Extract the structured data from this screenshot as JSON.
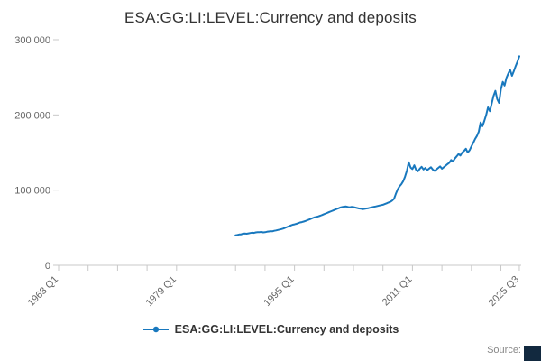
{
  "chart_data": {
    "type": "line",
    "title": "ESA:GG:LI:LEVEL:Currency and deposits",
    "legend": "ESA:GG:LI:LEVEL:Currency and deposits",
    "xlabel": "",
    "ylabel": "",
    "grid": false,
    "legend_position": "bottom-center",
    "xlim": [
      1963,
      2025.75
    ],
    "ylim": [
      0,
      300000
    ],
    "yticks": [
      {
        "v": 0,
        "label": "0"
      },
      {
        "v": 100000,
        "label": "100 000"
      },
      {
        "v": 200000,
        "label": "200 000"
      },
      {
        "v": 300000,
        "label": "300 000"
      }
    ],
    "xticks_labeled": [
      {
        "t": 1963.0,
        "label": "1963 Q1"
      },
      {
        "t": 1979.0,
        "label": "1979 Q1"
      },
      {
        "t": 1995.0,
        "label": "1995 Q1"
      },
      {
        "t": 2011.0,
        "label": "2011 Q1"
      },
      {
        "t": 2025.5,
        "label": "2025 Q3"
      }
    ],
    "xticks_minor": [
      1963,
      1967,
      1971,
      1975,
      1979,
      1983,
      1987,
      1991,
      1995,
      1999,
      2003,
      2007,
      2011,
      2015,
      2019,
      2023,
      2025.5
    ],
    "series_name": "ESA:GG:LI:LEVEL:Currency and deposits",
    "x_start": 1987.0,
    "x_step": 0.25,
    "values": [
      40000,
      40500,
      41000,
      41200,
      42000,
      42300,
      42000,
      42500,
      43000,
      43400,
      43100,
      43800,
      44200,
      44000,
      44500,
      43800,
      44000,
      44600,
      45000,
      45400,
      45200,
      46000,
      46400,
      47000,
      47600,
      48200,
      49000,
      50000,
      51000,
      52000,
      53000,
      54000,
      54500,
      55200,
      56000,
      57000,
      57500,
      58200,
      59000,
      60000,
      61000,
      62000,
      63000,
      64000,
      64500,
      65200,
      66000,
      67000,
      68000,
      69000,
      70000,
      71000,
      72000,
      73000,
      74000,
      75000,
      76000,
      77000,
      77500,
      78000,
      78200,
      77600,
      77200,
      77800,
      77400,
      76800,
      76200,
      75600,
      75200,
      74800,
      75100,
      75600,
      76000,
      76600,
      77200,
      77800,
      78200,
      78800,
      79400,
      80000,
      80500,
      81500,
      82500,
      83500,
      84500,
      86000,
      88500,
      95000,
      101000,
      105000,
      108000,
      112000,
      118000,
      126000,
      137000,
      130000,
      128000,
      133000,
      127000,
      125000,
      128500,
      131000,
      127500,
      129500,
      126500,
      128500,
      130500,
      127500,
      125500,
      127500,
      129500,
      131500,
      128500,
      130500,
      132500,
      134500,
      136500,
      140000,
      138000,
      142000,
      145000,
      148000,
      146000,
      150000,
      152000,
      155000,
      150000,
      153000,
      158000,
      163000,
      168000,
      172000,
      178000,
      190000,
      185000,
      192000,
      200000,
      210000,
      205000,
      215000,
      225000,
      232000,
      221000,
      216000,
      234000,
      244000,
      239000,
      249000,
      255000,
      260000,
      252000,
      258000,
      265000,
      271000,
      278000
    ]
  },
  "colors": {
    "line": "#1878be",
    "axis": "#c8c8c8",
    "tick_label": "#666666",
    "title": "#333333",
    "logo_block": "#12293f"
  },
  "footer": {
    "source": "Source:"
  }
}
